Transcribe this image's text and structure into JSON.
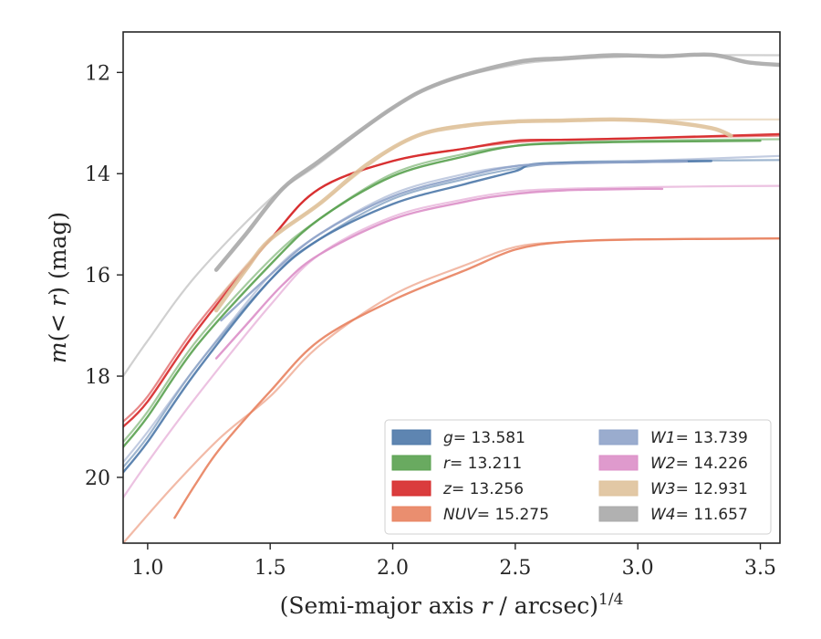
{
  "chart_data": {
    "type": "line",
    "xlabel": "(Semi-major axis r / arcsec)",
    "xlabel_parts": {
      "pre": "(Semi-major axis ",
      "var": "r",
      "post": " / arcsec)",
      "exp": "1/4"
    },
    "ylabel": "m(< r) (mag)",
    "ylabel_parts": {
      "var": "m",
      "mid": "(< ",
      "var2": "r",
      "post": ") (mag)"
    },
    "xlim": [
      0.9,
      3.58
    ],
    "ylim": [
      21.3,
      11.2
    ],
    "y_inverted": true,
    "x_ticks": [
      1.0,
      1.5,
      2.0,
      2.5,
      3.0,
      3.5
    ],
    "x_tick_labels": [
      "1.0",
      "1.5",
      "2.0",
      "2.5",
      "3.0",
      "3.5"
    ],
    "y_ticks": [
      12,
      14,
      16,
      18,
      20
    ],
    "y_tick_labels": [
      "12",
      "14",
      "16",
      "18",
      "20"
    ],
    "grid": false,
    "legend_location": "lower-right",
    "series": [
      {
        "name": "g",
        "legend_var": "g",
        "legend_value": "= 13.581",
        "color": "#4c78a8",
        "model": {
          "x": [
            0.9,
            1.0,
            1.2,
            1.5,
            1.7,
            2.0,
            2.3,
            2.5,
            2.7,
            3.0,
            3.3,
            3.58
          ],
          "y": [
            19.8,
            19.2,
            17.8,
            16.1,
            15.3,
            14.5,
            14.1,
            13.9,
            13.78,
            13.75,
            13.74,
            13.73
          ]
        },
        "data": {
          "x": [
            0.9,
            1.0,
            1.2,
            1.5,
            1.7,
            2.0,
            2.3,
            2.5,
            2.6,
            3.0,
            3.3
          ],
          "y": [
            19.9,
            19.3,
            17.9,
            16.1,
            15.3,
            14.6,
            14.2,
            13.95,
            13.8,
            13.77,
            13.75
          ]
        }
      },
      {
        "name": "r",
        "legend_var": "r",
        "legend_value": "= 13.211",
        "color": "#59a14f",
        "model": {
          "x": [
            0.9,
            1.0,
            1.2,
            1.5,
            1.7,
            2.0,
            2.3,
            2.5,
            2.7,
            3.0,
            3.3,
            3.58
          ],
          "y": [
            19.3,
            18.7,
            17.3,
            15.7,
            14.9,
            14.0,
            13.6,
            13.45,
            13.38,
            13.35,
            13.33,
            13.32
          ]
        },
        "data": {
          "x": [
            0.9,
            1.0,
            1.2,
            1.5,
            1.7,
            2.0,
            2.3,
            2.5,
            2.7,
            3.0,
            3.5
          ],
          "y": [
            19.4,
            18.8,
            17.4,
            15.8,
            14.9,
            14.05,
            13.65,
            13.45,
            13.4,
            13.37,
            13.35
          ]
        }
      },
      {
        "name": "z",
        "legend_var": "z",
        "legend_value": "= 13.256",
        "color": "#d62728",
        "model": {
          "x": [
            0.9,
            1.0,
            1.2,
            1.5,
            1.7,
            2.0,
            2.3,
            2.5,
            2.7,
            3.0,
            3.3,
            3.58
          ],
          "y": [
            18.9,
            18.4,
            17.0,
            15.3,
            14.3,
            13.75,
            13.5,
            13.38,
            13.33,
            13.3,
            13.27,
            13.25
          ]
        },
        "data": {
          "x": [
            0.9,
            1.0,
            1.2,
            1.5,
            1.7,
            2.0,
            2.3,
            2.5,
            2.7,
            3.0,
            3.58
          ],
          "y": [
            19.0,
            18.5,
            17.1,
            15.3,
            14.3,
            13.75,
            13.5,
            13.35,
            13.33,
            13.3,
            13.22
          ]
        }
      },
      {
        "name": "NUV",
        "legend_var": "NUV",
        "legend_value": "= 15.275",
        "color": "#e8825f",
        "model": {
          "x": [
            0.9,
            1.1,
            1.3,
            1.5,
            1.7,
            2.0,
            2.3,
            2.5,
            2.7,
            3.0,
            3.3,
            3.58
          ],
          "y": [
            21.3,
            20.2,
            19.2,
            18.4,
            17.4,
            16.4,
            15.8,
            15.45,
            15.35,
            15.3,
            15.29,
            15.28
          ]
        },
        "data": {
          "x": [
            1.11,
            1.2,
            1.3,
            1.5,
            1.7,
            2.0,
            2.3,
            2.5,
            2.7,
            3.0,
            3.58
          ],
          "y": [
            20.8,
            20.1,
            19.4,
            18.3,
            17.3,
            16.5,
            15.9,
            15.5,
            15.35,
            15.3,
            15.28
          ]
        }
      },
      {
        "name": "W1",
        "legend_var": "W1",
        "legend_value": "= 13.739",
        "color": "#8fa3c9",
        "model": {
          "x": [
            0.9,
            1.0,
            1.2,
            1.5,
            1.7,
            2.0,
            2.3,
            2.5,
            2.7,
            3.0,
            3.3,
            3.58
          ],
          "y": [
            19.7,
            19.1,
            17.8,
            16.0,
            15.2,
            14.4,
            14.0,
            13.85,
            13.8,
            13.75,
            13.7,
            13.65
          ]
        },
        "data": {
          "x": [
            1.3,
            1.5,
            1.7,
            2.0,
            2.3,
            2.5,
            2.7,
            3.0,
            3.2
          ],
          "y": [
            16.9,
            16.0,
            15.2,
            14.45,
            14.05,
            13.85,
            13.8,
            13.77,
            13.76
          ]
        }
      },
      {
        "name": "W2",
        "legend_var": "W2",
        "legend_value": "= 14.226",
        "color": "#dc8fc8",
        "model": {
          "x": [
            0.9,
            1.0,
            1.2,
            1.5,
            1.7,
            2.0,
            2.3,
            2.5,
            2.7,
            3.0,
            3.3,
            3.58
          ],
          "y": [
            20.4,
            19.7,
            18.4,
            16.6,
            15.6,
            14.85,
            14.5,
            14.35,
            14.3,
            14.27,
            14.25,
            14.24
          ]
        },
        "data": {
          "x": [
            1.28,
            1.4,
            1.55,
            1.7,
            2.0,
            2.3,
            2.5,
            2.7,
            3.0,
            3.1
          ],
          "y": [
            17.65,
            17.0,
            16.2,
            15.6,
            14.9,
            14.55,
            14.4,
            14.33,
            14.3,
            14.3
          ]
        }
      },
      {
        "name": "W3",
        "legend_var": "W3",
        "legend_value": "= 12.931",
        "color": "#dfc29b",
        "model": {
          "x": [
            1.28,
            1.5,
            1.7,
            2.0,
            2.2,
            2.5,
            2.7,
            3.0,
            3.3,
            3.58
          ],
          "y": [
            16.5,
            15.3,
            14.6,
            13.5,
            13.1,
            12.97,
            12.95,
            12.94,
            12.93,
            12.93
          ]
        },
        "data": {
          "x": [
            1.28,
            1.4,
            1.5,
            1.7,
            1.9,
            2.1,
            2.3,
            2.5,
            2.7,
            2.9,
            3.1,
            3.3,
            3.38
          ],
          "y": [
            16.7,
            15.9,
            15.3,
            14.6,
            13.8,
            13.25,
            13.05,
            12.97,
            12.95,
            12.93,
            12.97,
            13.1,
            13.25
          ]
        }
      },
      {
        "name": "W4",
        "legend_var": "W4",
        "legend_value": "= 11.657",
        "color": "#a9a9a9",
        "model": {
          "x": [
            0.9,
            1.0,
            1.2,
            1.5,
            1.7,
            2.0,
            2.2,
            2.5,
            2.7,
            3.0,
            3.3,
            3.58
          ],
          "y": [
            18.0,
            17.3,
            16.0,
            14.5,
            13.8,
            12.7,
            12.2,
            11.85,
            11.75,
            11.68,
            11.66,
            11.66
          ]
        },
        "data": {
          "x": [
            1.28,
            1.4,
            1.55,
            1.7,
            2.0,
            2.2,
            2.5,
            2.7,
            2.9,
            3.1,
            3.3,
            3.45,
            3.58
          ],
          "y": [
            15.9,
            15.2,
            14.3,
            13.75,
            12.7,
            12.2,
            11.8,
            11.72,
            11.66,
            11.68,
            11.65,
            11.8,
            11.85
          ]
        }
      }
    ]
  }
}
